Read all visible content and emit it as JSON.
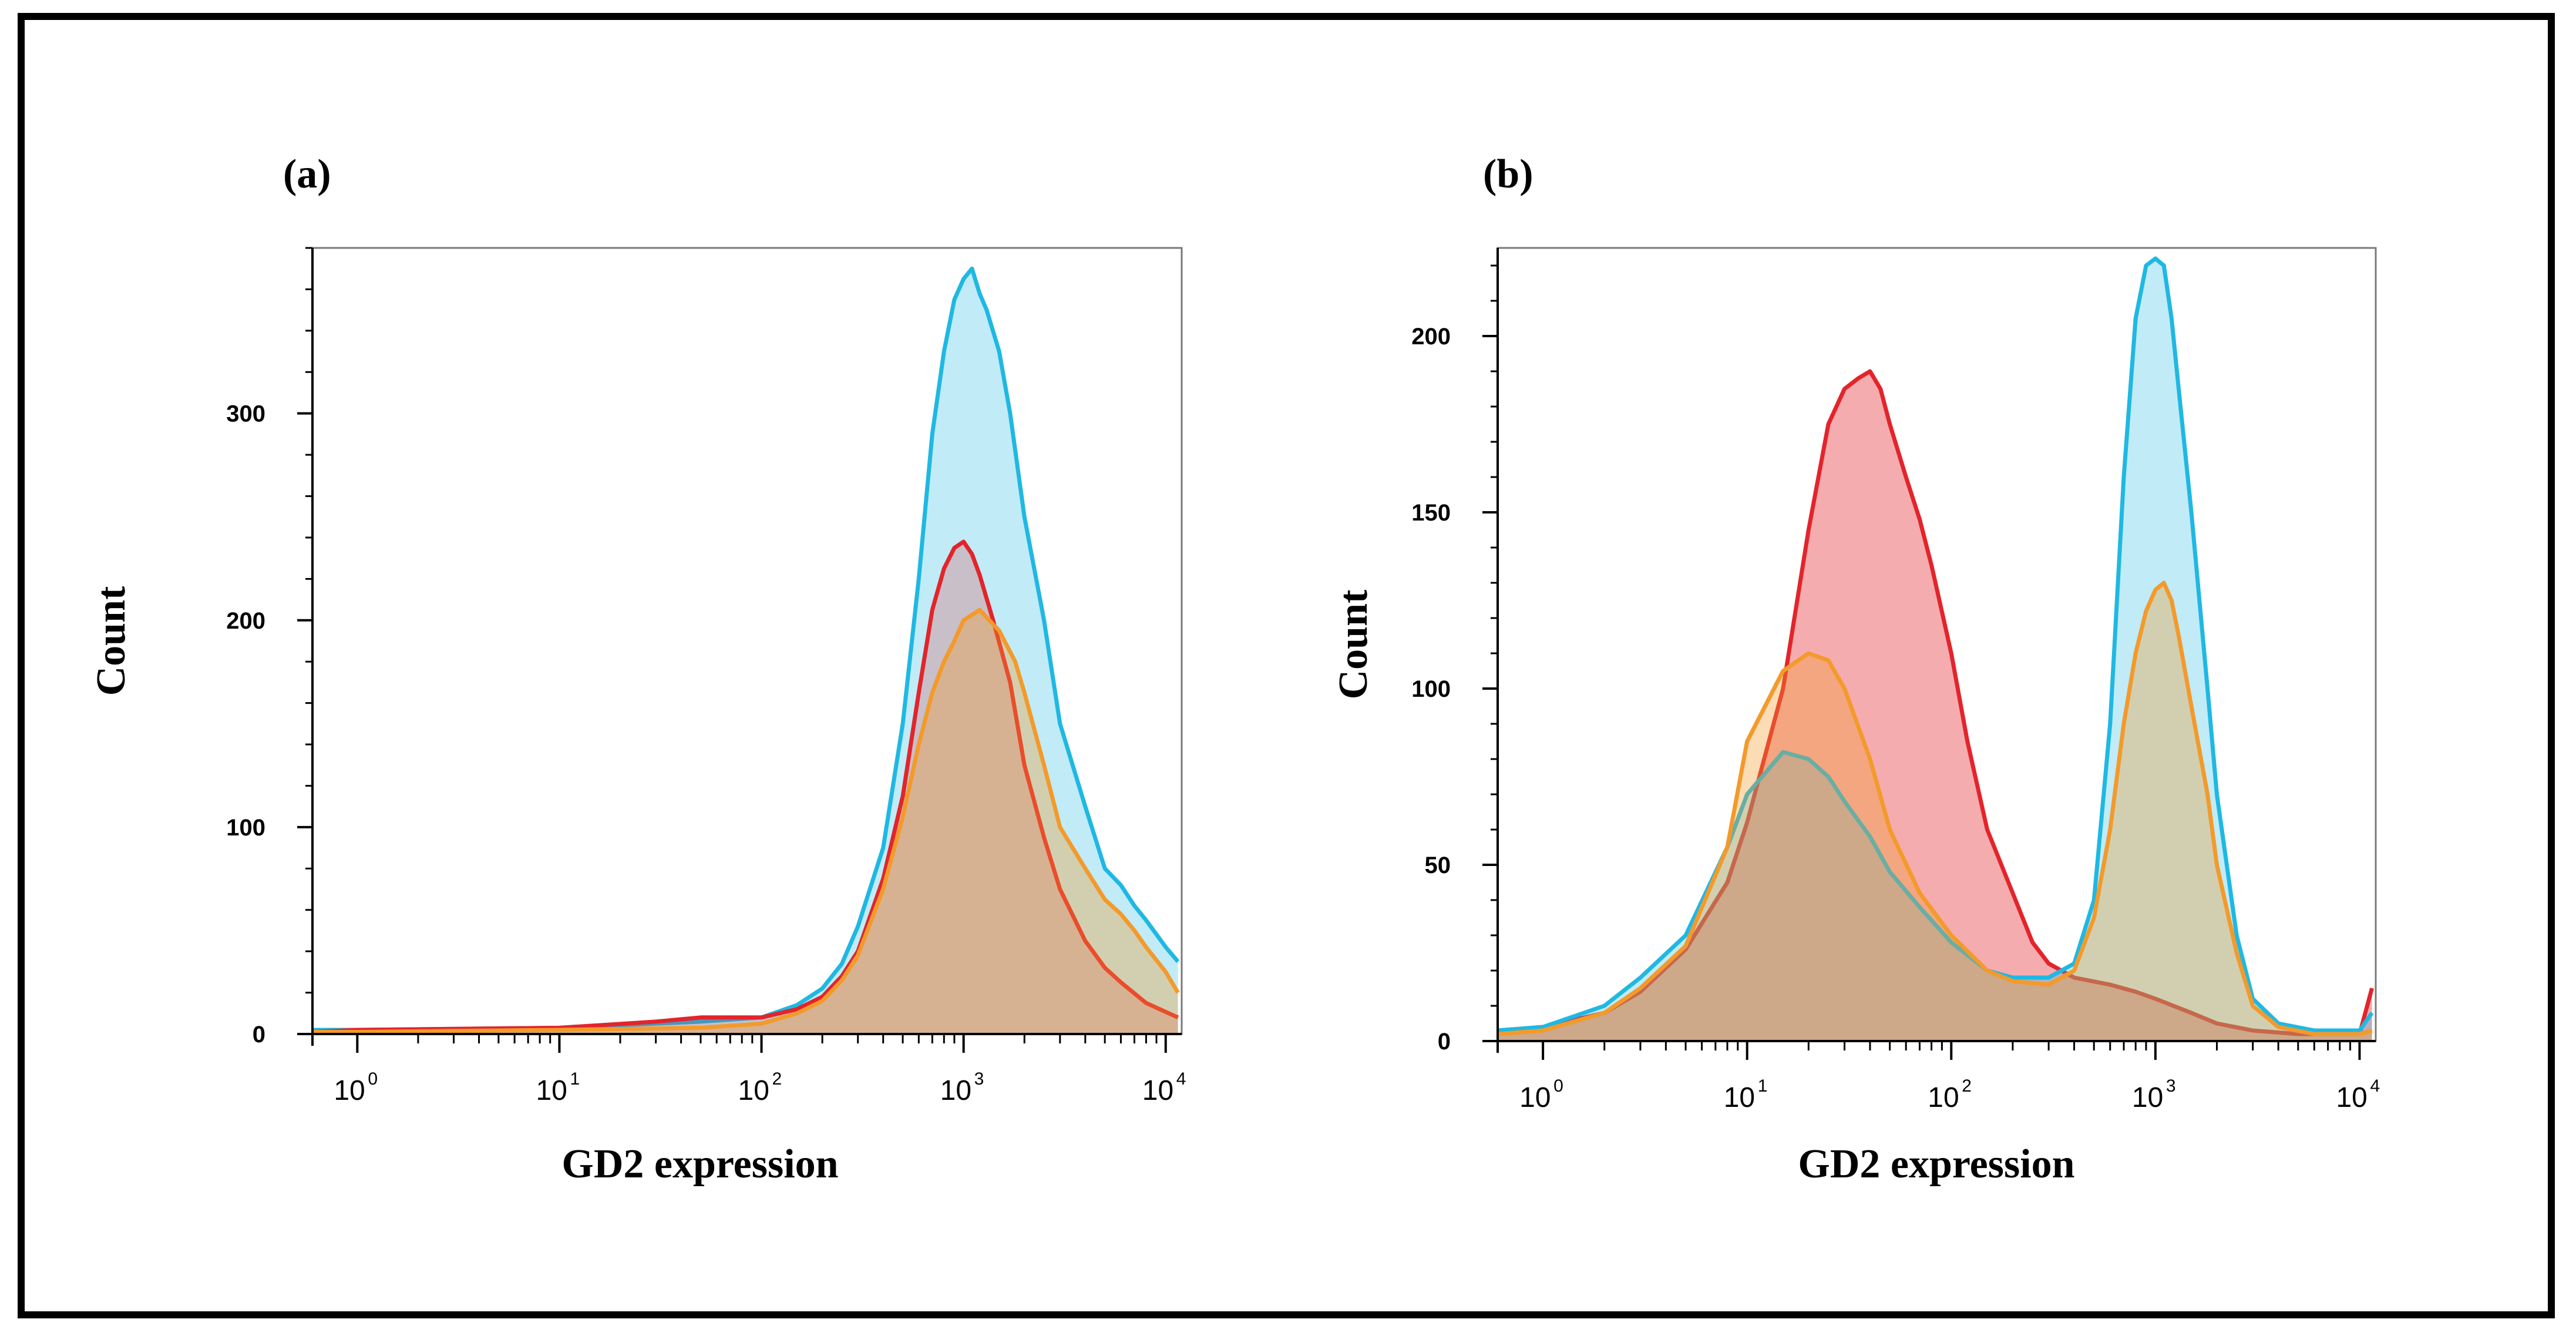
{
  "colors": {
    "cyan": "#1fb8e3",
    "red": "#e3242b",
    "orange": "#f39a2b",
    "frame": "#000000"
  },
  "chart_data": [
    {
      "type": "area",
      "panel_label": "(a)",
      "xlabel": "GD2 expression",
      "ylabel": "Count",
      "x_scale": "log",
      "xlim": [
        0.6,
        12000
      ],
      "ylim": [
        0,
        380
      ],
      "x_ticks": [
        {
          "base": "10",
          "exp": "0"
        },
        {
          "base": "10",
          "exp": "1"
        },
        {
          "base": "10",
          "exp": "2"
        },
        {
          "base": "10",
          "exp": "3"
        },
        {
          "base": "10",
          "exp": "4"
        }
      ],
      "y_ticks": [
        "0",
        "100",
        "200",
        "300"
      ],
      "y_tick_values": [
        0,
        100,
        200,
        300
      ],
      "series": [
        {
          "color": "#1fb8e3",
          "fill": "rgba(31,184,227,0.28)",
          "x": [
            0.6,
            1,
            10,
            50,
            100,
            150,
            200,
            250,
            300,
            400,
            500,
            600,
            700,
            800,
            900,
            1000,
            1100,
            1200,
            1300,
            1500,
            1700,
            2000,
            2500,
            3000,
            4000,
            5000,
            6000,
            7000,
            8000,
            10000,
            11500
          ],
          "y": [
            2,
            2,
            3,
            6,
            8,
            14,
            22,
            34,
            52,
            90,
            150,
            220,
            290,
            330,
            355,
            365,
            370,
            358,
            350,
            330,
            300,
            250,
            200,
            150,
            110,
            80,
            72,
            62,
            55,
            42,
            35
          ]
        },
        {
          "color": "#e3242b",
          "fill": "rgba(227,36,43,0.22)",
          "x": [
            0.6,
            1,
            10,
            30,
            50,
            100,
            150,
            200,
            250,
            300,
            400,
            500,
            600,
            700,
            800,
            900,
            1000,
            1100,
            1200,
            1400,
            1700,
            2000,
            2500,
            3000,
            4000,
            5000,
            6000,
            8000,
            11500
          ],
          "y": [
            1,
            2,
            3,
            6,
            8,
            8,
            12,
            18,
            28,
            40,
            75,
            115,
            165,
            205,
            225,
            235,
            238,
            232,
            222,
            200,
            170,
            130,
            95,
            70,
            45,
            32,
            25,
            15,
            8
          ]
        },
        {
          "color": "#f39a2b",
          "fill": "rgba(243,154,43,0.35)",
          "x": [
            0.6,
            1,
            10,
            50,
            100,
            150,
            200,
            250,
            300,
            400,
            500,
            600,
            700,
            800,
            900,
            1000,
            1200,
            1500,
            1800,
            2000,
            2500,
            3000,
            4000,
            5000,
            6000,
            7000,
            8000,
            10000,
            11500
          ],
          "y": [
            1,
            1,
            2,
            3,
            5,
            10,
            16,
            26,
            38,
            70,
            105,
            140,
            165,
            180,
            190,
            200,
            205,
            195,
            180,
            165,
            130,
            100,
            80,
            65,
            58,
            50,
            42,
            30,
            20
          ]
        }
      ]
    },
    {
      "type": "area",
      "panel_label": "(b)",
      "xlabel": "GD2 expression",
      "ylabel": "Count",
      "x_scale": "log",
      "xlim": [
        0.6,
        12000
      ],
      "ylim": [
        0,
        225
      ],
      "x_ticks": [
        {
          "base": "10",
          "exp": "0"
        },
        {
          "base": "10",
          "exp": "1"
        },
        {
          "base": "10",
          "exp": "2"
        },
        {
          "base": "10",
          "exp": "3"
        },
        {
          "base": "10",
          "exp": "4"
        }
      ],
      "y_ticks": [
        "0",
        "50",
        "100",
        "150",
        "200"
      ],
      "y_tick_values": [
        0,
        50,
        100,
        150,
        200
      ],
      "series": [
        {
          "color": "#e3242b",
          "fill": "rgba(227,36,43,0.38)",
          "x": [
            0.6,
            1,
            2,
            3,
            5,
            8,
            10,
            15,
            20,
            25,
            30,
            35,
            40,
            45,
            50,
            60,
            70,
            80,
            100,
            120,
            150,
            200,
            250,
            300,
            400,
            600,
            800,
            1000,
            1500,
            2000,
            3000,
            5000,
            10000,
            11500
          ],
          "y": [
            3,
            4,
            8,
            14,
            26,
            45,
            62,
            100,
            145,
            175,
            185,
            188,
            190,
            185,
            175,
            160,
            148,
            135,
            110,
            85,
            60,
            42,
            28,
            22,
            18,
            16,
            14,
            12,
            8,
            5,
            3,
            2,
            2,
            15
          ]
        },
        {
          "color": "#1fb8e3",
          "fill": "rgba(31,184,227,0.28)",
          "x": [
            0.6,
            1,
            2,
            3,
            5,
            8,
            10,
            15,
            20,
            25,
            30,
            40,
            50,
            70,
            100,
            150,
            200,
            300,
            400,
            500,
            600,
            700,
            800,
            900,
            1000,
            1100,
            1200,
            1300,
            1500,
            1800,
            2000,
            2500,
            3000,
            4000,
            6000,
            10000,
            11500
          ],
          "y": [
            3,
            4,
            10,
            18,
            30,
            55,
            70,
            82,
            80,
            75,
            68,
            58,
            48,
            38,
            28,
            20,
            18,
            18,
            22,
            40,
            90,
            160,
            205,
            220,
            222,
            220,
            205,
            185,
            150,
            100,
            70,
            30,
            12,
            5,
            3,
            3,
            8
          ]
        },
        {
          "color": "#f39a2b",
          "fill": "rgba(243,154,43,0.35)",
          "x": [
            0.6,
            1,
            2,
            3,
            5,
            8,
            10,
            15,
            20,
            25,
            30,
            40,
            50,
            70,
            100,
            150,
            200,
            300,
            400,
            500,
            600,
            700,
            800,
            900,
            1000,
            1100,
            1200,
            1300,
            1500,
            1800,
            2000,
            2500,
            3000,
            4000,
            6000,
            10000,
            11500
          ],
          "y": [
            2,
            3,
            8,
            15,
            27,
            55,
            85,
            105,
            110,
            108,
            100,
            80,
            60,
            42,
            30,
            20,
            17,
            16,
            20,
            35,
            60,
            90,
            110,
            122,
            128,
            130,
            125,
            115,
            95,
            70,
            50,
            25,
            10,
            4,
            2,
            2,
            3
          ]
        }
      ]
    }
  ]
}
